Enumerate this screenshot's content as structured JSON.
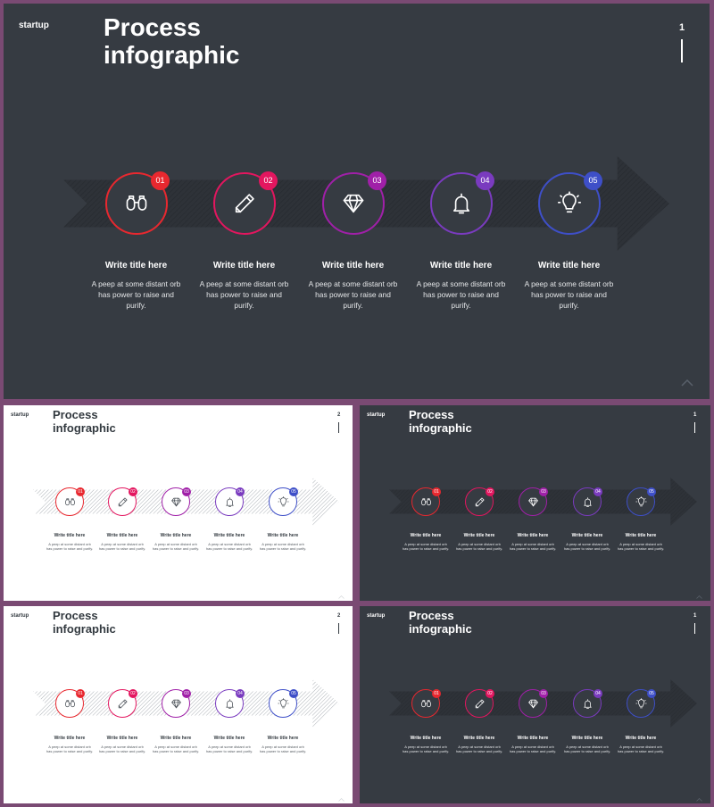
{
  "colors": {
    "frame": "#7a4a73",
    "dark_bg": "#363b42",
    "light_bg": "#ffffff",
    "step_1": "#e8282f",
    "step_2": "#e3165f",
    "step_3": "#a020a8",
    "step_4": "#7a3bbf",
    "step_5": "#3e4fc8"
  },
  "slides": [
    {
      "brand": "startup",
      "title": "Process infographic",
      "page_number": "1",
      "steps": [
        {
          "num": "01",
          "icon": "binoculars-icon",
          "title": "Write title here",
          "desc": "A peep at some distant orb has power to raise and purify."
        },
        {
          "num": "02",
          "icon": "pencil-icon",
          "title": "Write title here",
          "desc": "A peep at some distant orb has power to raise and purify."
        },
        {
          "num": "03",
          "icon": "diamond-icon",
          "title": "Write title here",
          "desc": "A peep at some distant orb has power to raise and purify."
        },
        {
          "num": "04",
          "icon": "bell-icon",
          "title": "Write title here",
          "desc": "A peep at some distant orb has power to raise and purify."
        },
        {
          "num": "05",
          "icon": "lightbulb-icon",
          "title": "Write title here",
          "desc": "A peep at some distant orb has power to raise and purify."
        }
      ]
    },
    {
      "brand": "startup",
      "title": "Process infographic",
      "page_number": "2",
      "steps": [
        {
          "num": "01",
          "icon": "binoculars-icon",
          "title": "Write title here",
          "desc": "A peep at some distant orb has power to raise and purify."
        },
        {
          "num": "02",
          "icon": "pencil-icon",
          "title": "Write title here",
          "desc": "A peep at some distant orb has power to raise and purify."
        },
        {
          "num": "03",
          "icon": "diamond-icon",
          "title": "Write title here",
          "desc": "A peep at some distant orb has power to raise and purify."
        },
        {
          "num": "04",
          "icon": "bell-icon",
          "title": "Write title here",
          "desc": "A peep at some distant orb has power to raise and purify."
        },
        {
          "num": "05",
          "icon": "lightbulb-icon",
          "title": "Write title here",
          "desc": "A peep at some distant orb has power to raise and purify."
        }
      ]
    },
    {
      "brand": "startup",
      "title": "Process infographic",
      "page_number": "1",
      "steps": [
        {
          "num": "01",
          "icon": "binoculars-icon",
          "title": "Write title here",
          "desc": "A peep at some distant orb has power to raise and purify."
        },
        {
          "num": "02",
          "icon": "pencil-icon",
          "title": "Write title here",
          "desc": "A peep at some distant orb has power to raise and purify."
        },
        {
          "num": "03",
          "icon": "diamond-icon",
          "title": "Write title here",
          "desc": "A peep at some distant orb has power to raise and purify."
        },
        {
          "num": "04",
          "icon": "bell-icon",
          "title": "Write title here",
          "desc": "A peep at some distant orb has power to raise and purify."
        },
        {
          "num": "05",
          "icon": "lightbulb-icon",
          "title": "Write title here",
          "desc": "A peep at some distant orb has power to raise and purify."
        }
      ]
    },
    {
      "brand": "startup",
      "title": "Process infographic",
      "page_number": "2",
      "steps": [
        {
          "num": "01",
          "icon": "binoculars-icon",
          "title": "Write title here",
          "desc": "A peep at some distant orb has power to raise and purify."
        },
        {
          "num": "02",
          "icon": "pencil-icon",
          "title": "Write title here",
          "desc": "A peep at some distant orb has power to raise and purify."
        },
        {
          "num": "03",
          "icon": "diamond-icon",
          "title": "Write title here",
          "desc": "A peep at some distant orb has power to raise and purify."
        },
        {
          "num": "04",
          "icon": "bell-icon",
          "title": "Write title here",
          "desc": "A peep at some distant orb has power to raise and purify."
        },
        {
          "num": "05",
          "icon": "lightbulb-icon",
          "title": "Write title here",
          "desc": "A peep at some distant orb has power to raise and purify."
        }
      ]
    },
    {
      "brand": "startup",
      "title": "Process infographic",
      "page_number": "1",
      "steps": [
        {
          "num": "01",
          "icon": "binoculars-icon",
          "title": "Write title here",
          "desc": "A peep at some distant orb has power to raise and purify."
        },
        {
          "num": "02",
          "icon": "pencil-icon",
          "title": "Write title here",
          "desc": "A peep at some distant orb has power to raise and purify."
        },
        {
          "num": "03",
          "icon": "diamond-icon",
          "title": "Write title here",
          "desc": "A peep at some distant orb has power to raise and purify."
        },
        {
          "num": "04",
          "icon": "bell-icon",
          "title": "Write title here",
          "desc": "A peep at some distant orb has power to raise and purify."
        },
        {
          "num": "05",
          "icon": "lightbulb-icon",
          "title": "Write title here",
          "desc": "A peep at some distant orb has power to raise and purify."
        }
      ]
    }
  ]
}
